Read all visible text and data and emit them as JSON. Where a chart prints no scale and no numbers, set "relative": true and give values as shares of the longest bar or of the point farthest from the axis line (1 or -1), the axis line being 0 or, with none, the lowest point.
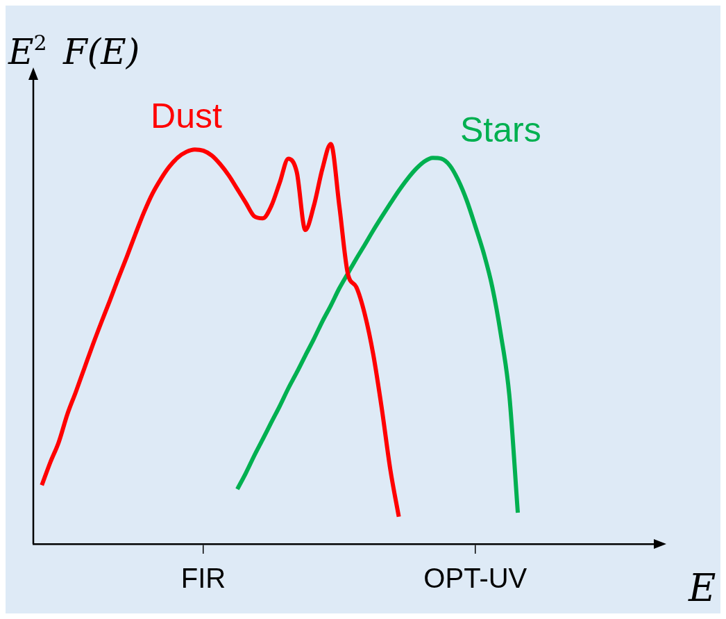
{
  "chart_data": {
    "type": "line",
    "relative": true,
    "xlabel": "E",
    "ylabel": "E$^{2}$ F(E)",
    "legend": false,
    "marker": "none",
    "line_style": "solid",
    "categories": [
      null,
      null,
      null,
      null,
      null,
      null,
      null,
      null,
      null,
      null,
      null,
      null,
      null,
      null,
      null,
      null,
      null,
      null,
      null,
      null,
      "FIR",
      null,
      null,
      null,
      null,
      null,
      null,
      null,
      null,
      null,
      null,
      null,
      null,
      null,
      null,
      null,
      null,
      null,
      null,
      null,
      null,
      null,
      null,
      null,
      null,
      null,
      null,
      null,
      null,
      null,
      null,
      null,
      "OPT-UV",
      null,
      null,
      null,
      null,
      null,
      null,
      null,
      null,
      null,
      null,
      null,
      null,
      null,
      null,
      null,
      null,
      null,
      null,
      null,
      null,
      null
    ],
    "series": [
      {
        "name": "Dust",
        "color": "#ff0000",
        "values": [
          null,
          0.147,
          0.204,
          0.255,
          0.324,
          0.38,
          0.439,
          0.498,
          0.554,
          0.608,
          0.664,
          0.718,
          0.774,
          0.828,
          0.875,
          0.912,
          0.943,
          0.966,
          0.98,
          0.986,
          0.983,
          0.971,
          0.949,
          0.921,
          0.887,
          0.853,
          0.819,
          0.814,
          0.845,
          0.904,
          0.963,
          0.929,
          0.785,
          0.845,
          0.937,
          1,
          0.845,
          0.676,
          0.642,
          0.574,
          0.473,
          0.338,
          0.186,
          0.068,
          null,
          null,
          null,
          null,
          null,
          null,
          null,
          null,
          null,
          null,
          null,
          null,
          null,
          null,
          null,
          null,
          null,
          null,
          null,
          null,
          null,
          null,
          null,
          null,
          null,
          null,
          null,
          null,
          null,
          null
        ]
      },
      {
        "name": "Stars",
        "color": "#00b050",
        "values": [
          null,
          null,
          null,
          null,
          null,
          null,
          null,
          null,
          null,
          null,
          null,
          null,
          null,
          null,
          null,
          null,
          null,
          null,
          null,
          null,
          null,
          null,
          null,
          null,
          0.137,
          0.177,
          0.221,
          0.262,
          0.304,
          0.345,
          0.389,
          0.429,
          0.471,
          0.512,
          0.556,
          0.596,
          0.639,
          0.676,
          0.713,
          0.748,
          0.784,
          0.818,
          0.851,
          0.883,
          0.912,
          0.937,
          0.956,
          0.965,
          0.963,
          0.946,
          0.909,
          0.858,
          0.794,
          0.726,
          0.642,
          0.524,
          0.372,
          0.078,
          null,
          null,
          null,
          null,
          null,
          null,
          null,
          null,
          null,
          null,
          null,
          null,
          null,
          null,
          null,
          null
        ]
      }
    ]
  }
}
